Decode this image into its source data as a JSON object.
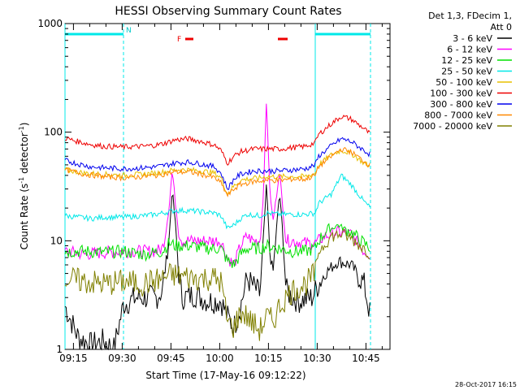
{
  "chart_data": {
    "type": "line",
    "title": "HESSI Observing Summary Count Rates",
    "xlabel": "Start Time (17-May-16 09:12:22)",
    "ylabel_main": "Count Rate (s",
    "ylabel_sup1": "-1",
    "ylabel_mid": " detector",
    "ylabel_sup2": "-1",
    "ylabel_end": ")",
    "yscale": "log",
    "ylim": [
      1,
      1000
    ],
    "xlim_minutes": [
      0,
      100
    ],
    "x_ticks": [
      {
        "t": 2.6,
        "label": "09:15"
      },
      {
        "t": 17.6,
        "label": "09:30"
      },
      {
        "t": 32.6,
        "label": "09:45"
      },
      {
        "t": 47.6,
        "label": "10:00"
      },
      {
        "t": 62.6,
        "label": "10:15"
      },
      {
        "t": 77.6,
        "label": "10:30"
      },
      {
        "t": 92.6,
        "label": "10:45"
      }
    ],
    "y_ticks": [
      {
        "v": 1,
        "label": "1"
      },
      {
        "v": 10,
        "label": "10"
      },
      {
        "v": 100,
        "label": "100"
      },
      {
        "v": 1000,
        "label": "1000"
      }
    ],
    "legend_header": [
      "Det 1,3, FDecim 1,",
      "Att 0"
    ],
    "series": [
      {
        "name": "3 - 6 keV",
        "color": "#000000",
        "points": [
          [
            0,
            2.5
          ],
          [
            4,
            1.3
          ],
          [
            8,
            1.1
          ],
          [
            12,
            1.2
          ],
          [
            15,
            1.0
          ],
          [
            18,
            2.6
          ],
          [
            22,
            3.0
          ],
          [
            28,
            3.0
          ],
          [
            30,
            3.5
          ],
          [
            31,
            6
          ],
          [
            32,
            10
          ],
          [
            33,
            30
          ],
          [
            34,
            14
          ],
          [
            35,
            5
          ],
          [
            36,
            3
          ],
          [
            40,
            3.2
          ],
          [
            44,
            2.8
          ],
          [
            48,
            2.8
          ],
          [
            50,
            2.0
          ],
          [
            52,
            1.6
          ],
          [
            54,
            2.5
          ],
          [
            56,
            4.5
          ],
          [
            58,
            3.8
          ],
          [
            60,
            3.2
          ],
          [
            61,
            10
          ],
          [
            62,
            33
          ],
          [
            63,
            8
          ],
          [
            64,
            5
          ],
          [
            65,
            12
          ],
          [
            66,
            28
          ],
          [
            67,
            12
          ],
          [
            68,
            3.5
          ],
          [
            70,
            3.0
          ],
          [
            72,
            2.8
          ],
          [
            74,
            2.9
          ],
          [
            76,
            3.0
          ],
          [
            78,
            4.0
          ],
          [
            80,
            5.0
          ],
          [
            84,
            6.5
          ],
          [
            88,
            6.0
          ],
          [
            92,
            4.0
          ],
          [
            94,
            2.0
          ]
        ]
      },
      {
        "name": "6 - 12 keV",
        "color": "#ff00ff",
        "points": [
          [
            0,
            8
          ],
          [
            6,
            7.5
          ],
          [
            12,
            7.8
          ],
          [
            18,
            8
          ],
          [
            24,
            8
          ],
          [
            28,
            8
          ],
          [
            30,
            8.5
          ],
          [
            31,
            12
          ],
          [
            32,
            20
          ],
          [
            33,
            45
          ],
          [
            34,
            22
          ],
          [
            35,
            12
          ],
          [
            36,
            10
          ],
          [
            40,
            10
          ],
          [
            44,
            10
          ],
          [
            48,
            10
          ],
          [
            50,
            7
          ],
          [
            52,
            6
          ],
          [
            54,
            9
          ],
          [
            56,
            11
          ],
          [
            58,
            10
          ],
          [
            60,
            10
          ],
          [
            61,
            25
          ],
          [
            62,
            200
          ],
          [
            63,
            30
          ],
          [
            64,
            15
          ],
          [
            65,
            25
          ],
          [
            66,
            45
          ],
          [
            67,
            20
          ],
          [
            68,
            10
          ],
          [
            70,
            10
          ],
          [
            74,
            9.5
          ],
          [
            77,
            9.5
          ],
          [
            78,
            10
          ],
          [
            80,
            11
          ],
          [
            84,
            12
          ],
          [
            88,
            11.5
          ],
          [
            92,
            8
          ],
          [
            94,
            7.5
          ]
        ]
      },
      {
        "name": "12 - 25 keV",
        "color": "#00e000",
        "points": [
          [
            0,
            8
          ],
          [
            6,
            8
          ],
          [
            12,
            7.8
          ],
          [
            18,
            8
          ],
          [
            24,
            7.5
          ],
          [
            28,
            7.8
          ],
          [
            30,
            8
          ],
          [
            32,
            9.5
          ],
          [
            34,
            9
          ],
          [
            38,
            9
          ],
          [
            44,
            8.5
          ],
          [
            48,
            8.5
          ],
          [
            50,
            6.5
          ],
          [
            52,
            6
          ],
          [
            54,
            7.5
          ],
          [
            56,
            8.5
          ],
          [
            60,
            8.5
          ],
          [
            62,
            9
          ],
          [
            66,
            8.5
          ],
          [
            70,
            8
          ],
          [
            74,
            8
          ],
          [
            77,
            8.5
          ],
          [
            78,
            10
          ],
          [
            80,
            12
          ],
          [
            84,
            14
          ],
          [
            88,
            12
          ],
          [
            92,
            9.5
          ],
          [
            94,
            8.5
          ]
        ]
      },
      {
        "name": "25 - 50 keV",
        "color": "#00e8e8",
        "points": [
          [
            0,
            17
          ],
          [
            4,
            16.5
          ],
          [
            8,
            16
          ],
          [
            12,
            16.5
          ],
          [
            18,
            16.5
          ],
          [
            24,
            17
          ],
          [
            28,
            17.5
          ],
          [
            30,
            18
          ],
          [
            34,
            19
          ],
          [
            38,
            19
          ],
          [
            42,
            18.5
          ],
          [
            46,
            18
          ],
          [
            48,
            17
          ],
          [
            50,
            13
          ],
          [
            52,
            14
          ],
          [
            54,
            16
          ],
          [
            56,
            17.5
          ],
          [
            60,
            17
          ],
          [
            62,
            18
          ],
          [
            66,
            17.5
          ],
          [
            70,
            17.5
          ],
          [
            74,
            17.5
          ],
          [
            77,
            18
          ],
          [
            78,
            22
          ],
          [
            82,
            27
          ],
          [
            85,
            40
          ],
          [
            88,
            33
          ],
          [
            92,
            23
          ],
          [
            94,
            20
          ]
        ]
      },
      {
        "name": "50 - 100 keV",
        "color": "#e8c000",
        "points": [
          [
            0,
            45
          ],
          [
            6,
            42
          ],
          [
            12,
            41
          ],
          [
            18,
            40
          ],
          [
            24,
            41
          ],
          [
            28,
            42
          ],
          [
            30,
            43
          ],
          [
            34,
            45
          ],
          [
            38,
            45
          ],
          [
            42,
            44
          ],
          [
            46,
            42
          ],
          [
            48,
            38
          ],
          [
            50,
            27
          ],
          [
            52,
            32
          ],
          [
            54,
            36
          ],
          [
            56,
            37
          ],
          [
            60,
            38
          ],
          [
            62,
            39
          ],
          [
            66,
            39
          ],
          [
            70,
            39
          ],
          [
            74,
            39
          ],
          [
            77,
            42
          ],
          [
            78,
            50
          ],
          [
            82,
            62
          ],
          [
            85,
            68
          ],
          [
            88,
            64
          ],
          [
            92,
            52
          ],
          [
            94,
            48
          ]
        ]
      },
      {
        "name": "100 - 300 keV",
        "color": "#ee0000",
        "points": [
          [
            0,
            88
          ],
          [
            4,
            82
          ],
          [
            8,
            77
          ],
          [
            12,
            74
          ],
          [
            18,
            73
          ],
          [
            24,
            74
          ],
          [
            28,
            76
          ],
          [
            30,
            78
          ],
          [
            34,
            85
          ],
          [
            38,
            87
          ],
          [
            42,
            82
          ],
          [
            46,
            76
          ],
          [
            48,
            68
          ],
          [
            50,
            52
          ],
          [
            52,
            60
          ],
          [
            54,
            66
          ],
          [
            58,
            70
          ],
          [
            62,
            70
          ],
          [
            66,
            70
          ],
          [
            70,
            72
          ],
          [
            74,
            74
          ],
          [
            77,
            80
          ],
          [
            78,
            95
          ],
          [
            82,
            120
          ],
          [
            85,
            140
          ],
          [
            88,
            132
          ],
          [
            92,
            108
          ],
          [
            94,
            95
          ]
        ]
      },
      {
        "name": "300 - 800 keV",
        "color": "#0000ee",
        "points": [
          [
            0,
            55
          ],
          [
            4,
            51
          ],
          [
            8,
            48
          ],
          [
            12,
            47
          ],
          [
            18,
            46
          ],
          [
            24,
            47
          ],
          [
            28,
            48
          ],
          [
            30,
            49
          ],
          [
            34,
            52
          ],
          [
            38,
            53
          ],
          [
            42,
            51
          ],
          [
            46,
            48
          ],
          [
            48,
            42
          ],
          [
            50,
            30
          ],
          [
            52,
            37
          ],
          [
            54,
            41
          ],
          [
            58,
            44
          ],
          [
            62,
            44
          ],
          [
            66,
            44
          ],
          [
            70,
            45
          ],
          [
            74,
            46
          ],
          [
            77,
            50
          ],
          [
            78,
            60
          ],
          [
            82,
            75
          ],
          [
            85,
            87
          ],
          [
            88,
            82
          ],
          [
            92,
            68
          ],
          [
            94,
            62
          ]
        ]
      },
      {
        "name": "800 - 7000 keV",
        "color": "#ff8800",
        "points": [
          [
            0,
            45
          ],
          [
            6,
            41
          ],
          [
            12,
            39
          ],
          [
            18,
            38
          ],
          [
            24,
            39
          ],
          [
            28,
            40
          ],
          [
            30,
            41
          ],
          [
            34,
            43
          ],
          [
            38,
            43
          ],
          [
            42,
            41
          ],
          [
            46,
            38
          ],
          [
            48,
            34
          ],
          [
            50,
            26
          ],
          [
            52,
            30
          ],
          [
            54,
            33
          ],
          [
            58,
            35
          ],
          [
            62,
            36
          ],
          [
            66,
            36
          ],
          [
            70,
            37
          ],
          [
            74,
            37
          ],
          [
            77,
            40
          ],
          [
            78,
            48
          ],
          [
            82,
            60
          ],
          [
            85,
            70
          ],
          [
            88,
            66
          ],
          [
            92,
            54
          ],
          [
            94,
            49
          ]
        ]
      },
      {
        "name": "7000 - 20000 keV",
        "color": "#808000",
        "points": [
          [
            0,
            4.5
          ],
          [
            6,
            4.2
          ],
          [
            12,
            4.0
          ],
          [
            18,
            4.2
          ],
          [
            24,
            4.0
          ],
          [
            28,
            4.3
          ],
          [
            30,
            4.5
          ],
          [
            32,
            4.8
          ],
          [
            34,
            4.8
          ],
          [
            38,
            4.6
          ],
          [
            42,
            4.5
          ],
          [
            46,
            4.5
          ],
          [
            48,
            4.2
          ],
          [
            50,
            1.8
          ],
          [
            52,
            1.6
          ],
          [
            54,
            2.2
          ],
          [
            56,
            2.0
          ],
          [
            58,
            1.7
          ],
          [
            60,
            1.5
          ],
          [
            62,
            2.0
          ],
          [
            64,
            1.8
          ],
          [
            66,
            2.5
          ],
          [
            68,
            3.0
          ],
          [
            70,
            3.5
          ],
          [
            74,
            4.0
          ],
          [
            77,
            5.0
          ],
          [
            78,
            8
          ],
          [
            82,
            11
          ],
          [
            85,
            11.5
          ],
          [
            88,
            10.5
          ],
          [
            92,
            8.5
          ],
          [
            94,
            7.5
          ]
        ]
      }
    ],
    "night_intervals": [
      [
        0,
        18
      ],
      [
        77,
        94
      ]
    ],
    "night_label": "N",
    "flare_label": "F",
    "flare_intervals": [
      [
        37,
        39.5
      ],
      [
        65.5,
        68.5
      ]
    ]
  },
  "timestamp": "28-Oct-2017 16:15"
}
